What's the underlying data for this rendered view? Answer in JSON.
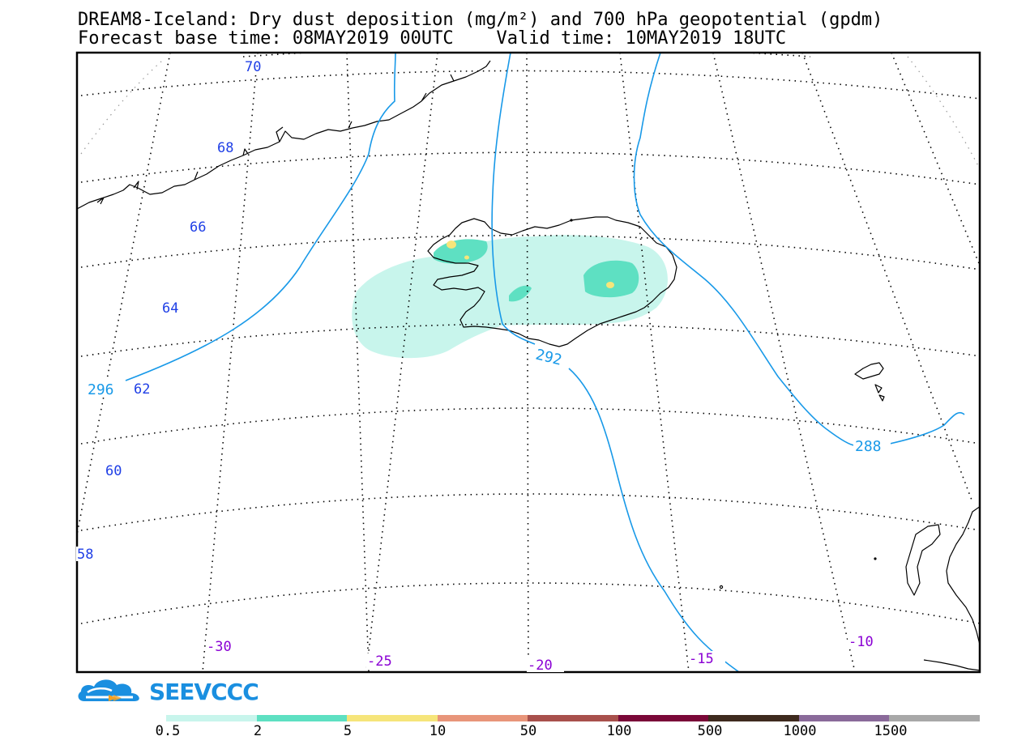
{
  "title": {
    "line1": "DREAM8-Iceland: Dry dust deposition (mg/m²) and 700 hPa geopotential (gpdm)",
    "line2": "Forecast base time: 08MAY2019 00UTC    Valid time: 10MAY2019 18UTC"
  },
  "map": {
    "lat_labels": [
      "70",
      "68",
      "66",
      "64",
      "62",
      "60",
      "58"
    ],
    "lon_labels": [
      "-30",
      "-25",
      "-20",
      "-15",
      "-10"
    ],
    "contour_labels": [
      "296",
      "292",
      "288"
    ],
    "colors": {
      "graticule": "#000000",
      "lat_label": "#1f3fe6",
      "lon_label": "#8a00d4",
      "contour": "#1899e8",
      "coast": "#000000"
    }
  },
  "logo": {
    "text": "SEEVCCC",
    "icon": "cloud-logo-icon",
    "color": "#1a8fe0"
  },
  "colorbar": {
    "labels": [
      "0.5",
      "2",
      "5",
      "10",
      "50",
      "100",
      "500",
      "1000",
      "1500"
    ],
    "colors": [
      "#c8f5ec",
      "#5ee0c2",
      "#f6e57a",
      "#e8957a",
      "#a8504c",
      "#7a0838",
      "#3e2a1e",
      "#8a6a9a",
      "#a8a8a8"
    ]
  }
}
